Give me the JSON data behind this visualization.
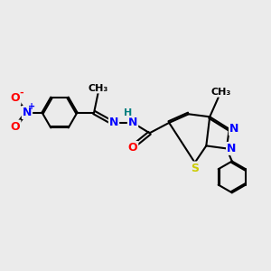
{
  "background_color": "#ebebeb",
  "atom_colors": {
    "C": "#000000",
    "N": "#0000ff",
    "O": "#ff0000",
    "S": "#cccc00",
    "H": "#008080"
  },
  "bond_color": "#000000",
  "bond_width": 1.5,
  "font_size_atom": 9,
  "title": ""
}
